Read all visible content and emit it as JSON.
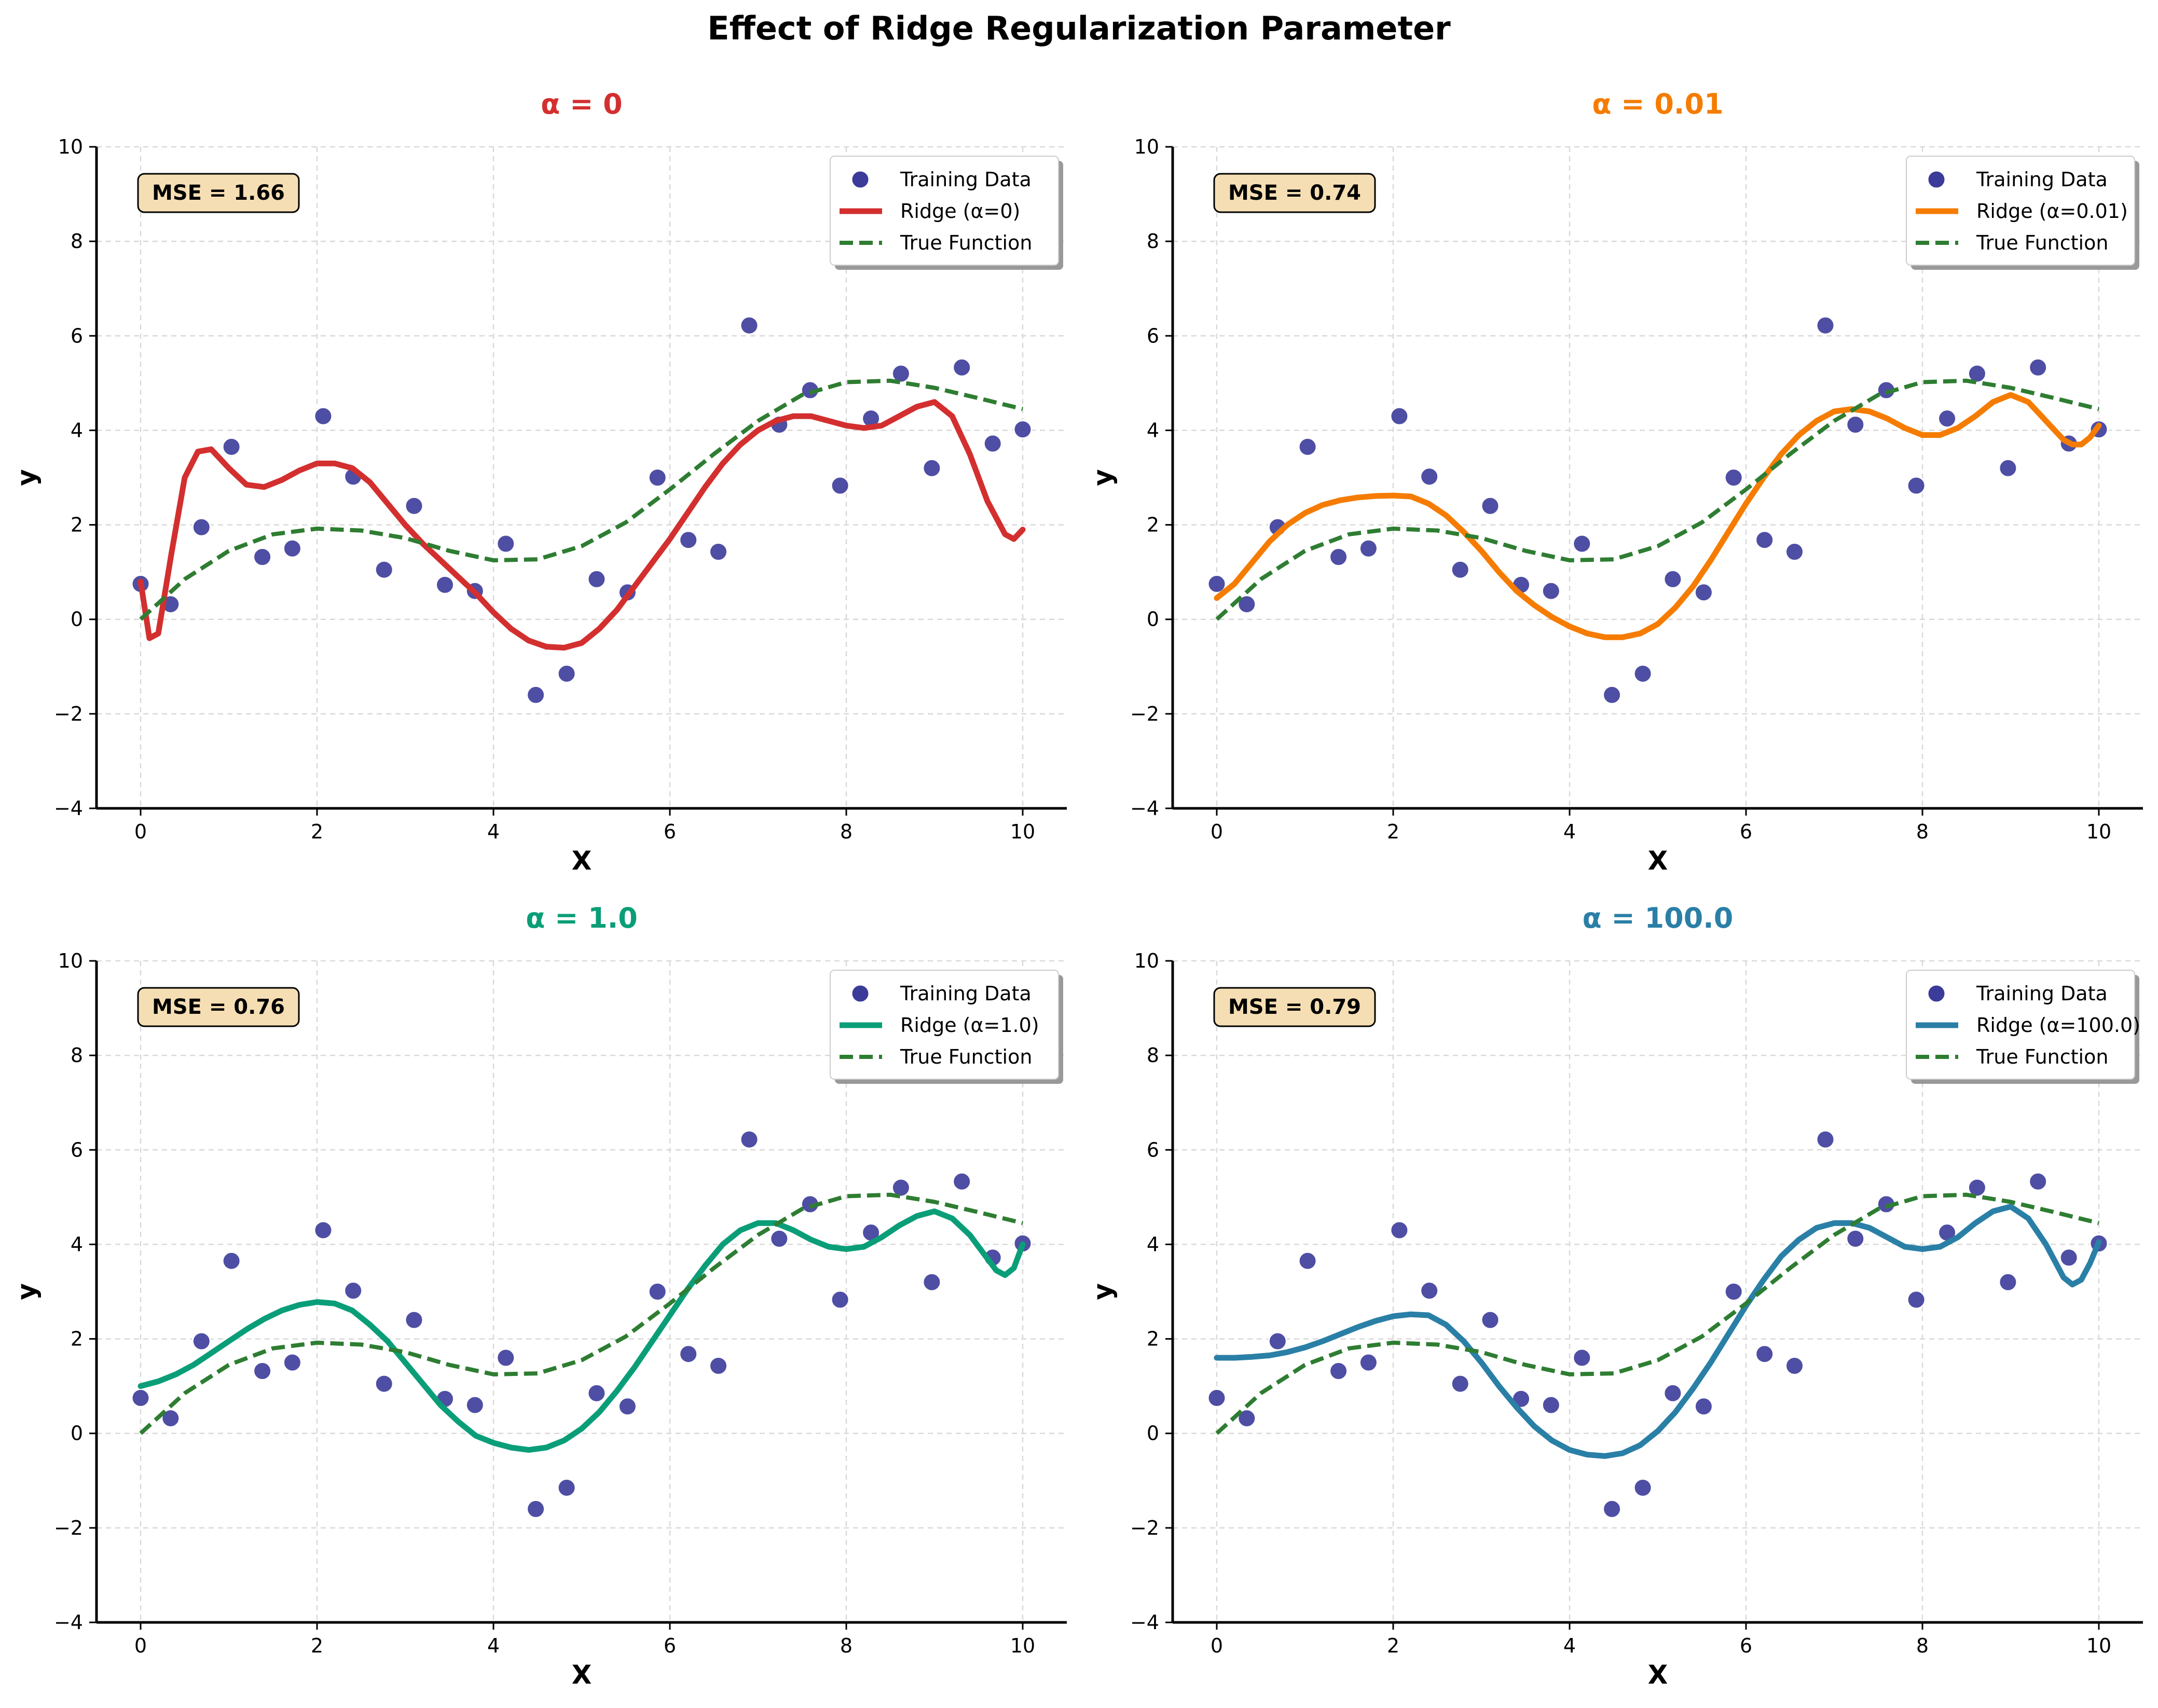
{
  "figure_title": "Effect of Ridge Regularization Parameter",
  "colors": {
    "training_data": "#3b3b9a",
    "true_function": "#2e7d32",
    "mse_box_fill": "#f5deb3",
    "grid": "#d9d9d9"
  },
  "chart_data": [
    {
      "type": "line",
      "title": "α = 0",
      "title_color": "#d32f2f",
      "curve_color": "#d32f2f",
      "xlabel": "X",
      "ylabel": "y",
      "xlim": [
        -0.5,
        10.5
      ],
      "ylim": [
        -4,
        10
      ],
      "xticks": [
        0,
        2,
        4,
        6,
        8,
        10
      ],
      "yticks": [
        -4,
        -2,
        0,
        2,
        4,
        6,
        8,
        10
      ],
      "ytick_labels": [
        "−4",
        "−2",
        "0",
        "2",
        "4",
        "6",
        "8",
        "10"
      ],
      "grid": true,
      "legend_position": "top-right",
      "legend": [
        "Training Data",
        "Ridge (α=0)",
        "True Function"
      ],
      "annotation": "MSE = 1.66",
      "ridge_curve": {
        "x": [
          0,
          0.1,
          0.2,
          0.35,
          0.5,
          0.65,
          0.8,
          1.0,
          1.2,
          1.4,
          1.6,
          1.8,
          2.0,
          2.2,
          2.4,
          2.6,
          2.8,
          3.0,
          3.2,
          3.4,
          3.6,
          3.8,
          4.0,
          4.2,
          4.4,
          4.6,
          4.8,
          5.0,
          5.2,
          5.4,
          5.6,
          5.8,
          6.0,
          6.2,
          6.4,
          6.6,
          6.8,
          7.0,
          7.2,
          7.4,
          7.6,
          7.8,
          8.0,
          8.2,
          8.4,
          8.6,
          8.8,
          9.0,
          9.2,
          9.4,
          9.6,
          9.8,
          9.9,
          10.0
        ],
        "y": [
          0.8,
          -0.4,
          -0.3,
          1.4,
          3.0,
          3.55,
          3.6,
          3.2,
          2.85,
          2.8,
          2.95,
          3.15,
          3.3,
          3.3,
          3.2,
          2.9,
          2.45,
          2.0,
          1.6,
          1.25,
          0.9,
          0.55,
          0.15,
          -0.2,
          -0.45,
          -0.58,
          -0.6,
          -0.5,
          -0.2,
          0.2,
          0.7,
          1.2,
          1.7,
          2.25,
          2.8,
          3.3,
          3.7,
          4.0,
          4.2,
          4.3,
          4.3,
          4.2,
          4.1,
          4.05,
          4.1,
          4.3,
          4.5,
          4.6,
          4.3,
          3.5,
          2.5,
          1.8,
          1.7,
          1.9
        ]
      }
    },
    {
      "type": "line",
      "title": "α = 0.01",
      "title_color": "#f57c00",
      "curve_color": "#f57c00",
      "xlabel": "X",
      "ylabel": "y",
      "xlim": [
        -0.5,
        10.5
      ],
      "ylim": [
        -4,
        10
      ],
      "xticks": [
        0,
        2,
        4,
        6,
        8,
        10
      ],
      "yticks": [
        -4,
        -2,
        0,
        2,
        4,
        6,
        8,
        10
      ],
      "ytick_labels": [
        "−4",
        "−2",
        "0",
        "2",
        "4",
        "6",
        "8",
        "10"
      ],
      "grid": true,
      "legend_position": "top-right",
      "legend": [
        "Training Data",
        "Ridge (α=0.01)",
        "True Function"
      ],
      "annotation": "MSE = 0.74",
      "ridge_curve": {
        "x": [
          0,
          0.2,
          0.4,
          0.6,
          0.8,
          1.0,
          1.2,
          1.4,
          1.6,
          1.8,
          2.0,
          2.2,
          2.4,
          2.6,
          2.8,
          3.0,
          3.2,
          3.4,
          3.6,
          3.8,
          4.0,
          4.2,
          4.4,
          4.6,
          4.8,
          5.0,
          5.2,
          5.4,
          5.6,
          5.8,
          6.0,
          6.2,
          6.4,
          6.6,
          6.8,
          7.0,
          7.2,
          7.4,
          7.6,
          7.8,
          8.0,
          8.2,
          8.4,
          8.6,
          8.8,
          9.0,
          9.2,
          9.4,
          9.6,
          9.7,
          9.8,
          9.9,
          10.0
        ],
        "y": [
          0.45,
          0.75,
          1.2,
          1.65,
          2.0,
          2.25,
          2.42,
          2.52,
          2.58,
          2.61,
          2.62,
          2.6,
          2.45,
          2.2,
          1.85,
          1.45,
          1.0,
          0.6,
          0.3,
          0.05,
          -0.15,
          -0.3,
          -0.38,
          -0.38,
          -0.3,
          -0.1,
          0.25,
          0.7,
          1.25,
          1.85,
          2.45,
          3.0,
          3.5,
          3.9,
          4.2,
          4.4,
          4.45,
          4.4,
          4.25,
          4.05,
          3.9,
          3.9,
          4.05,
          4.3,
          4.6,
          4.75,
          4.6,
          4.2,
          3.8,
          3.7,
          3.7,
          3.85,
          4.1
        ]
      }
    },
    {
      "type": "line",
      "title": "α = 1.0",
      "title_color": "#0a9e78",
      "curve_color": "#0a9e78",
      "xlabel": "X",
      "ylabel": "y",
      "xlim": [
        -0.5,
        10.5
      ],
      "ylim": [
        -4,
        10
      ],
      "xticks": [
        0,
        2,
        4,
        6,
        8,
        10
      ],
      "yticks": [
        -4,
        -2,
        0,
        2,
        4,
        6,
        8,
        10
      ],
      "ytick_labels": [
        "−4",
        "−2",
        "0",
        "2",
        "4",
        "6",
        "8",
        "10"
      ],
      "grid": true,
      "legend_position": "top-right",
      "legend": [
        "Training Data",
        "Ridge (α=1.0)",
        "True Function"
      ],
      "annotation": "MSE = 0.76",
      "ridge_curve": {
        "x": [
          0,
          0.2,
          0.4,
          0.6,
          0.8,
          1.0,
          1.2,
          1.4,
          1.6,
          1.8,
          2.0,
          2.2,
          2.4,
          2.6,
          2.8,
          3.0,
          3.2,
          3.4,
          3.6,
          3.8,
          4.0,
          4.2,
          4.4,
          4.6,
          4.8,
          5.0,
          5.2,
          5.4,
          5.6,
          5.8,
          6.0,
          6.2,
          6.4,
          6.6,
          6.8,
          7.0,
          7.2,
          7.4,
          7.6,
          7.8,
          8.0,
          8.2,
          8.4,
          8.6,
          8.8,
          9.0,
          9.2,
          9.4,
          9.6,
          9.7,
          9.8,
          9.9,
          10.0
        ],
        "y": [
          1.0,
          1.1,
          1.25,
          1.45,
          1.7,
          1.95,
          2.2,
          2.42,
          2.6,
          2.72,
          2.78,
          2.75,
          2.6,
          2.3,
          1.95,
          1.5,
          1.05,
          0.6,
          0.25,
          -0.05,
          -0.2,
          -0.3,
          -0.35,
          -0.3,
          -0.15,
          0.1,
          0.45,
          0.9,
          1.4,
          1.95,
          2.5,
          3.05,
          3.55,
          4.0,
          4.3,
          4.45,
          4.45,
          4.3,
          4.1,
          3.95,
          3.9,
          3.95,
          4.15,
          4.4,
          4.6,
          4.7,
          4.55,
          4.2,
          3.7,
          3.45,
          3.35,
          3.5,
          4.0
        ]
      }
    },
    {
      "type": "line",
      "title": "α = 100.0",
      "title_color": "#2a7fa6",
      "curve_color": "#2a7fa6",
      "xlabel": "X",
      "ylabel": "y",
      "xlim": [
        -0.5,
        10.5
      ],
      "ylim": [
        -4,
        10
      ],
      "xticks": [
        0,
        2,
        4,
        6,
        8,
        10
      ],
      "yticks": [
        -4,
        -2,
        0,
        2,
        4,
        6,
        8,
        10
      ],
      "ytick_labels": [
        "−4",
        "−2",
        "0",
        "2",
        "4",
        "6",
        "8",
        "10"
      ],
      "grid": true,
      "legend_position": "top-right",
      "legend": [
        "Training Data",
        "Ridge (α=100.0)",
        "True Function"
      ],
      "annotation": "MSE = 0.79",
      "ridge_curve": {
        "x": [
          0,
          0.2,
          0.4,
          0.6,
          0.8,
          1.0,
          1.2,
          1.4,
          1.6,
          1.8,
          2.0,
          2.2,
          2.4,
          2.6,
          2.8,
          3.0,
          3.2,
          3.4,
          3.6,
          3.8,
          4.0,
          4.2,
          4.4,
          4.6,
          4.8,
          5.0,
          5.2,
          5.4,
          5.6,
          5.8,
          6.0,
          6.2,
          6.4,
          6.6,
          6.8,
          7.0,
          7.2,
          7.4,
          7.6,
          7.8,
          8.0,
          8.2,
          8.4,
          8.6,
          8.8,
          9.0,
          9.2,
          9.4,
          9.6,
          9.7,
          9.8,
          9.9,
          10.0
        ],
        "y": [
          1.6,
          1.6,
          1.62,
          1.65,
          1.72,
          1.82,
          1.95,
          2.1,
          2.25,
          2.38,
          2.48,
          2.52,
          2.5,
          2.3,
          1.95,
          1.5,
          1.0,
          0.55,
          0.15,
          -0.15,
          -0.35,
          -0.45,
          -0.48,
          -0.42,
          -0.25,
          0.05,
          0.45,
          0.95,
          1.5,
          2.1,
          2.7,
          3.25,
          3.75,
          4.1,
          4.35,
          4.45,
          4.45,
          4.35,
          4.15,
          3.95,
          3.9,
          3.95,
          4.15,
          4.45,
          4.7,
          4.8,
          4.55,
          4.0,
          3.3,
          3.15,
          3.25,
          3.6,
          4.05
        ]
      }
    }
  ],
  "training_data": {
    "x": [
      0.0,
      0.34,
      0.69,
      1.03,
      1.38,
      1.72,
      2.07,
      2.41,
      2.76,
      3.1,
      3.45,
      3.79,
      4.14,
      4.48,
      4.83,
      5.17,
      5.52,
      5.86,
      6.21,
      6.55,
      6.9,
      7.24,
      7.59,
      7.93,
      8.28,
      8.62,
      8.97,
      9.31,
      9.66,
      10.0
    ],
    "y": [
      0.75,
      0.32,
      1.95,
      3.65,
      1.32,
      1.5,
      4.3,
      3.02,
      1.05,
      2.4,
      0.73,
      0.6,
      1.6,
      -1.6,
      -1.15,
      0.85,
      0.57,
      3.0,
      1.68,
      1.43,
      6.22,
      4.12,
      4.85,
      2.83,
      4.25,
      5.2,
      3.2,
      5.33,
      3.72,
      4.02
    ]
  },
  "true_function": {
    "x": [
      0,
      0.5,
      1.0,
      1.5,
      2.0,
      2.5,
      3.0,
      3.5,
      4.0,
      4.5,
      5.0,
      5.5,
      6.0,
      6.5,
      7.0,
      7.5,
      8.0,
      8.5,
      9.0,
      9.5,
      10.0
    ],
    "y": [
      0.0,
      0.85,
      1.45,
      1.8,
      1.92,
      1.88,
      1.72,
      1.45,
      1.25,
      1.27,
      1.55,
      2.05,
      2.75,
      3.5,
      4.2,
      4.75,
      5.02,
      5.05,
      4.9,
      4.68,
      4.45
    ]
  }
}
